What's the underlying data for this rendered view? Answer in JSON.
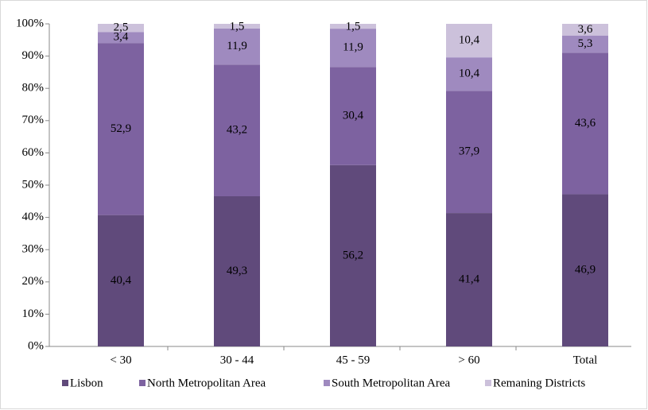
{
  "chart_data": {
    "type": "stacked100",
    "categories": [
      "< 30",
      "30 - 44",
      "45 - 59",
      "> 60",
      "Total"
    ],
    "series": [
      {
        "name": "Lisbon",
        "color": "#604a7b",
        "values": [
          40.4,
          49.3,
          56.2,
          41.4,
          46.9
        ],
        "value_labels": [
          "40,4",
          "49,3",
          "56,2",
          "41,4",
          "46,9"
        ]
      },
      {
        "name": "North Metropolitan Area",
        "color": "#7d62a0",
        "values": [
          52.9,
          43.2,
          30.4,
          37.9,
          43.6
        ],
        "value_labels": [
          "52,9",
          "43,2",
          "30,4",
          "37,9",
          "43,6"
        ]
      },
      {
        "name": "South Metropolitan Area",
        "color": "#9f8abf",
        "values": [
          3.4,
          11.9,
          11.9,
          10.4,
          5.3
        ],
        "value_labels": [
          "3,4",
          "11,9",
          "11,9",
          "10,4",
          "5,3"
        ]
      },
      {
        "name": "Remaning Districts",
        "color": "#ccc1db",
        "values": [
          2.5,
          1.5,
          1.5,
          10.4,
          3.6
        ],
        "value_labels": [
          "2,5",
          "1,5",
          "1,5",
          "10,4",
          "3,6"
        ]
      }
    ],
    "ylim": [
      0,
      100
    ],
    "yticks": [
      {
        "value": 0,
        "label": "0%"
      },
      {
        "value": 10,
        "label": "10%"
      },
      {
        "value": 20,
        "label": "20%"
      },
      {
        "value": 30,
        "label": "30%"
      },
      {
        "value": 40,
        "label": "40%"
      },
      {
        "value": 50,
        "label": "50%"
      },
      {
        "value": 60,
        "label": "60%"
      },
      {
        "value": 70,
        "label": "70%"
      },
      {
        "value": 80,
        "label": "80%"
      },
      {
        "value": 90,
        "label": "90%"
      },
      {
        "value": 100,
        "label": "100%"
      }
    ],
    "legend": "bottom"
  }
}
